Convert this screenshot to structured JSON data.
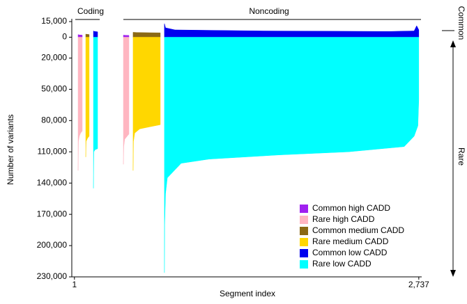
{
  "chart_data": {
    "type": "mirrored-area",
    "y_label": "Number of variants",
    "x_label": "Segment index",
    "annotations": {
      "coding": "Coding",
      "noncoding": "Noncoding",
      "common": "Common",
      "rare": "Rare"
    },
    "xlim": [
      -20,
      2760
    ],
    "xticks": [
      1,
      {
        "value": 2737,
        "label": "2,737"
      }
    ],
    "common_ylim": [
      0,
      15000
    ],
    "rare_ylim": [
      0,
      230000
    ],
    "common_yticks": [
      {
        "value": 15000,
        "label": "15,000"
      }
    ],
    "rare_yticks": [
      0,
      {
        "value": 20000,
        "label": "20,000"
      },
      {
        "value": 50000,
        "label": "50,000"
      },
      {
        "value": 80000,
        "label": "80,000"
      },
      {
        "value": 110000,
        "label": "110,000"
      },
      {
        "value": 140000,
        "label": "140,000"
      },
      {
        "value": 170000,
        "label": "170,000"
      },
      {
        "value": 200000,
        "label": "200,000"
      },
      {
        "value": 230000,
        "label": "230,000"
      }
    ],
    "legend": "lower right",
    "series": [
      {
        "name": "Common high CADD",
        "color": "#a020f0",
        "axis": "common",
        "x": [
          30,
          40,
          63,
          null,
          390,
          410,
          434
        ],
        "values": [
          2500,
          2200,
          2000,
          null,
          2000,
          1800,
          1700
        ]
      },
      {
        "name": "Rare high CADD",
        "color": "#ffb6c1",
        "axis": "rare",
        "x": [
          30,
          33,
          40,
          50,
          63,
          null,
          390,
          393,
          400,
          420,
          434
        ],
        "values": [
          128000,
          100000,
          95000,
          92000,
          90000,
          null,
          122000,
          105000,
          98000,
          95000,
          93000
        ]
      },
      {
        "name": "Common medium CADD",
        "color": "#8b6914",
        "axis": "common",
        "x": [
          91,
          100,
          118,
          null,
          467,
          500,
          600,
          683
        ],
        "values": [
          3000,
          2800,
          2600,
          null,
          4700,
          4500,
          4300,
          4200
        ]
      },
      {
        "name": "Rare medium CADD",
        "color": "#ffd700",
        "axis": "rare",
        "x": [
          91,
          94,
          105,
          118,
          null,
          467,
          470,
          480,
          520,
          600,
          683
        ],
        "values": [
          115000,
          100000,
          97000,
          95000,
          null,
          128000,
          100000,
          92000,
          88000,
          86000,
          84000
        ]
      },
      {
        "name": "Common low CADD",
        "color": "#0000ee",
        "axis": "common",
        "x": [
          152,
          160,
          185,
          null,
          716,
          725,
          800,
          1500,
          2500,
          2700,
          2720,
          2737
        ],
        "values": [
          6000,
          5500,
          5200,
          null,
          13000,
          9000,
          7000,
          6000,
          5500,
          6000,
          11000,
          7000
        ]
      },
      {
        "name": "Rare low CADD",
        "color": "#00ffff",
        "axis": "rare",
        "x": [
          152,
          155,
          165,
          185,
          null,
          716,
          718,
          725,
          739,
          849,
          1071,
          1625,
          2178,
          2621,
          2700,
          2730,
          2737
        ],
        "values": [
          145000,
          110000,
          108000,
          107000,
          null,
          226000,
          180000,
          150000,
          135000,
          121000,
          117000,
          113000,
          110000,
          105000,
          95000,
          85000,
          60000
        ]
      }
    ]
  }
}
